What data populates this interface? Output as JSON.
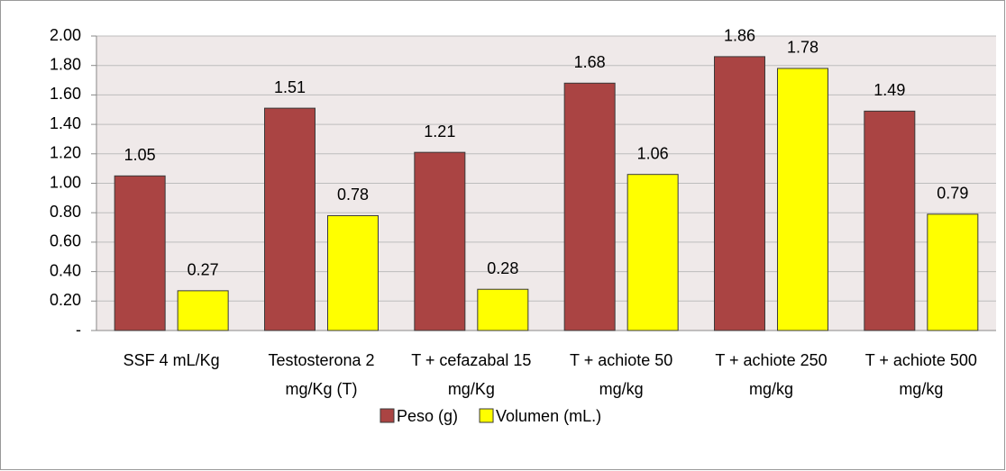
{
  "chart_data": {
    "type": "bar",
    "categories": [
      "SSF 4 mL/Kg",
      "Testosterona 2 mg/Kg (T)",
      "T + cefazabal 15 mg/Kg",
      "T + achiote 50 mg/kg",
      "T + achiote 250 mg/kg",
      "T + achiote 500 mg/kg"
    ],
    "series": [
      {
        "name": "Peso (g)",
        "color": "#aa4443",
        "values": [
          1.05,
          1.51,
          1.21,
          1.68,
          1.86,
          1.49
        ]
      },
      {
        "name": "Volumen (mL.)",
        "color": "#ffff00",
        "values": [
          0.27,
          0.78,
          0.28,
          1.06,
          1.78,
          0.79
        ]
      }
    ],
    "ylim": [
      0,
      2
    ],
    "yticks": [
      {
        "value": 0,
        "label": "-"
      },
      {
        "value": 0.2,
        "label": "0.20"
      },
      {
        "value": 0.4,
        "label": "0.40"
      },
      {
        "value": 0.6,
        "label": "0.60"
      },
      {
        "value": 0.8,
        "label": "0.80"
      },
      {
        "value": 1,
        "label": "1.00"
      },
      {
        "value": 1.2,
        "label": "1.20"
      },
      {
        "value": 1.4,
        "label": "1.40"
      },
      {
        "value": 1.6,
        "label": "1.60"
      },
      {
        "value": 1.8,
        "label": "1.80"
      },
      {
        "value": 2,
        "label": "2.00"
      }
    ],
    "grid": true,
    "legend": "bottom"
  }
}
